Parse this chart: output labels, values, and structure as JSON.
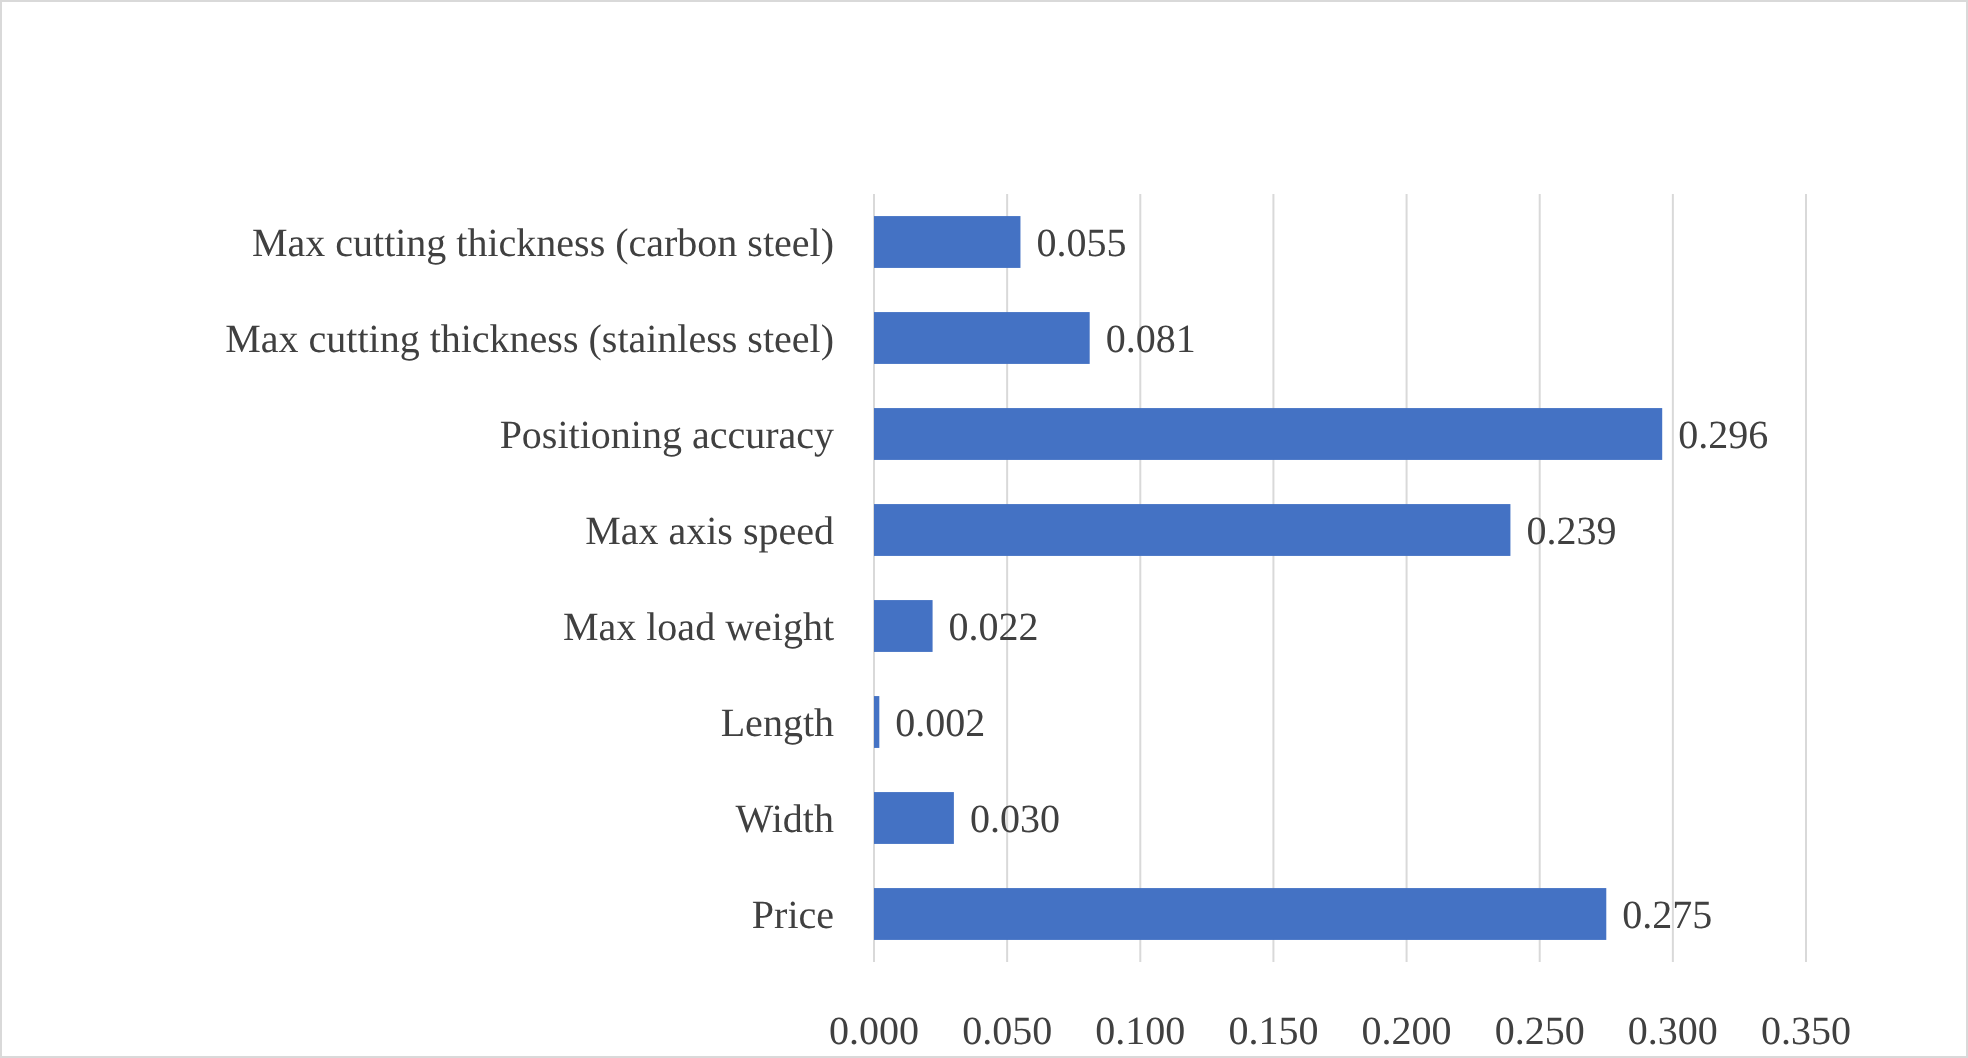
{
  "chart_data": {
    "type": "bar",
    "orientation": "horizontal",
    "categories": [
      "Max cutting thickness (carbon steel)",
      "Max cutting thickness (stainless steel)",
      "Positioning accuracy",
      "Max axis speed",
      "Max load weight",
      "Length",
      "Width",
      "Price"
    ],
    "values": [
      0.055,
      0.081,
      0.296,
      0.239,
      0.022,
      0.002,
      0.03,
      0.275
    ],
    "value_labels": [
      "0.055",
      "0.081",
      "0.296",
      "0.239",
      "0.022",
      "0.002",
      "0.030",
      "0.275"
    ],
    "color": "#4472c4",
    "xlim": [
      0,
      0.35
    ],
    "xticks": [
      {
        "value": 0,
        "label": "0.000"
      },
      {
        "value": 0.05,
        "label": "0.050"
      },
      {
        "value": 0.1,
        "label": "0.100"
      },
      {
        "value": 0.15,
        "label": "0.150"
      },
      {
        "value": 0.2,
        "label": "0.200"
      },
      {
        "value": 0.25,
        "label": "0.250"
      },
      {
        "value": 0.3,
        "label": "0.300"
      },
      {
        "value": 0.35,
        "label": "0.350"
      }
    ],
    "grid": "x"
  }
}
